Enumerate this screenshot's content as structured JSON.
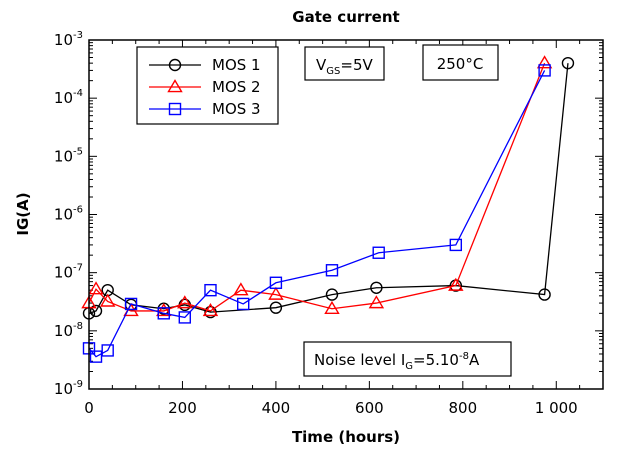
{
  "chart_data": {
    "type": "line",
    "title": "Gate current",
    "xlabel": "Time (hours)",
    "ylabel": "IG(A)",
    "xlim": [
      0,
      1100
    ],
    "ylim_log10": [
      -9,
      -3
    ],
    "y_scale": "log",
    "x_ticks": [
      0,
      200,
      400,
      600,
      800,
      1000
    ],
    "x_tick_labels": [
      "0",
      "200",
      "400",
      "600",
      "800",
      "1 000"
    ],
    "y_tick_exponents": [
      -9,
      -8,
      -7,
      -6,
      -5,
      -4,
      -3
    ],
    "y_tick_base": "10",
    "legend_position": "top-left",
    "series": [
      {
        "name": "MOS 1",
        "color": "#000000",
        "marker": "circle",
        "x": [
          0,
          15,
          40,
          90,
          160,
          205,
          260,
          400,
          520,
          615,
          785,
          975,
          1025
        ],
        "y": [
          2e-08,
          2.2e-08,
          5e-08,
          2.8e-08,
          2.4e-08,
          2.8e-08,
          2.1e-08,
          2.5e-08,
          4.2e-08,
          5.5e-08,
          6e-08,
          4.2e-08,
          0.0004
        ]
      },
      {
        "name": "MOS 2",
        "color": "#ff0000",
        "marker": "triangle",
        "x": [
          0,
          15,
          40,
          90,
          160,
          205,
          260,
          325,
          400,
          520,
          615,
          785,
          975
        ],
        "y": [
          3e-08,
          5.2e-08,
          3.2e-08,
          2.2e-08,
          2.2e-08,
          3e-08,
          2.2e-08,
          5e-08,
          4.2e-08,
          2.4e-08,
          3e-08,
          6e-08,
          0.0004
        ]
      },
      {
        "name": "MOS 3",
        "color": "#0000ff",
        "marker": "square",
        "x": [
          0,
          15,
          40,
          90,
          160,
          205,
          260,
          330,
          400,
          520,
          620,
          785,
          975
        ],
        "y": [
          5e-09,
          3.6e-09,
          4.6e-09,
          2.9e-08,
          2e-08,
          1.7e-08,
          5e-08,
          2.9e-08,
          6.7e-08,
          1.1e-07,
          2.2e-07,
          3e-07,
          0.0003
        ]
      }
    ],
    "annotations": {
      "vgs": {
        "main": "V",
        "sub": "GS",
        "rest": "=5V"
      },
      "temp": {
        "text": "250°C"
      },
      "noise": {
        "main": "Noise level I",
        "sub": "G",
        "rest": "=5.10",
        "sup": "-8",
        "tail": "A"
      }
    }
  }
}
